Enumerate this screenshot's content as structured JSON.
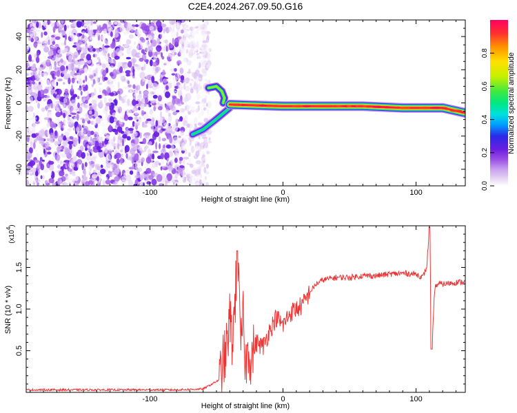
{
  "title": "C2E4.2024.267.09.50.G16",
  "colors": {
    "line": "#ee3333",
    "spectrum_cmap": [
      "#e6d2f2",
      "#b37ae6",
      "#8a3ee0",
      "#6a1ee0",
      "#2a2ae8",
      "#00c8ff",
      "#00e8a0",
      "#40e840",
      "#c8f000",
      "#ffe000",
      "#ff8000",
      "#ff0040"
    ]
  },
  "chart_data": [
    {
      "type": "heatmap",
      "xlabel": "Height of straight line (km)",
      "ylabel": "Frequency (Hz)",
      "xlim": [
        -193,
        137
      ],
      "ylim": [
        -50,
        50
      ],
      "xticks": [
        -100,
        0,
        100
      ],
      "xtick_labels": [
        "-100",
        "0",
        "100"
      ],
      "yticks": [
        -40,
        -20,
        0,
        20,
        40
      ],
      "ytick_labels": [
        "-40",
        "-20",
        "0",
        "20",
        "40"
      ],
      "colorbar": {
        "label": "Normalized spectral amplitude",
        "range": [
          0,
          1
        ],
        "ticks": [
          0.0,
          0.2,
          0.4,
          0.6,
          0.8
        ],
        "tick_labels": [
          "0.0",
          "0.2",
          "0.4",
          "0.6",
          "0.8"
        ]
      },
      "features": [
        {
          "kind": "noise_region",
          "x_range": [
            -193,
            -63
          ],
          "amplitude": "low"
        },
        {
          "kind": "arc",
          "points": [
            [
              -68,
              -19
            ],
            [
              -60,
              -16
            ],
            [
              -52,
              -11
            ],
            [
              -46,
              -7
            ],
            [
              -40,
              -3
            ]
          ],
          "amplitude": 0.5
        },
        {
          "kind": "arc",
          "points": [
            [
              -56,
              9
            ],
            [
              -50,
              10
            ],
            [
              -46,
              7
            ],
            [
              -44,
              3
            ],
            [
              -45,
              0
            ]
          ],
          "amplitude": 0.6
        },
        {
          "kind": "band",
          "x_range": [
            -40,
            137
          ],
          "freq_points": [
            [
              -40,
              -1
            ],
            [
              0,
              -2
            ],
            [
              60,
              -2
            ],
            [
              90,
              -3
            ],
            [
              120,
              -3
            ],
            [
              137,
              -6
            ]
          ],
          "amplitude": 1.0
        }
      ]
    },
    {
      "type": "line",
      "xlabel": "Height of straight line (km)",
      "ylabel": "SNR (10 * v/v)",
      "y_scale_note": "(x10",
      "y_scale_exp": "4",
      "xlim": [
        -193,
        137
      ],
      "ylim": [
        0,
        2.0
      ],
      "xticks": [
        -100,
        0,
        100
      ],
      "xtick_labels": [
        "-100",
        "0",
        "100"
      ],
      "yticks": [
        0.5,
        1.0,
        1.5
      ],
      "ytick_labels": [
        "0.5",
        "1.0",
        "1.5"
      ],
      "series": [
        {
          "x": [
            -193,
            -160,
            -120,
            -80,
            -60,
            -48,
            -42,
            -40,
            -38,
            -36,
            -34,
            -32,
            -30,
            -28,
            -26,
            -24,
            -20,
            -15,
            -10,
            -5,
            0,
            5,
            10,
            15,
            20,
            25,
            30,
            40,
            50,
            60,
            70,
            80,
            90,
            100,
            105,
            108,
            110,
            112,
            114,
            116,
            120,
            130,
            137
          ],
          "y": [
            0.03,
            0.03,
            0.03,
            0.03,
            0.04,
            0.15,
            0.55,
            0.9,
            0.6,
            1.1,
            1.7,
            0.5,
            0.9,
            0.3,
            0.55,
            0.4,
            0.6,
            0.55,
            0.75,
            0.9,
            0.8,
            0.95,
            1.0,
            1.05,
            1.2,
            1.3,
            1.35,
            1.38,
            1.38,
            1.4,
            1.4,
            1.42,
            1.43,
            1.42,
            1.38,
            1.5,
            1.98,
            0.52,
            1.25,
            1.3,
            1.3,
            1.32,
            1.33
          ]
        }
      ]
    }
  ]
}
